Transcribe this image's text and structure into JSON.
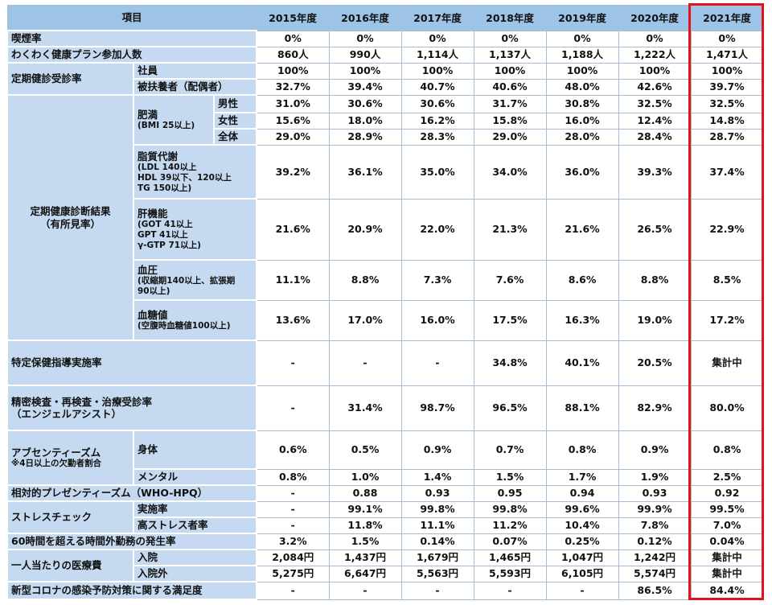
{
  "header": {
    "item": "項目",
    "years": [
      "2015年度",
      "2016年度",
      "2017年度",
      "2018年度",
      "2019年度",
      "2020年度",
      "2021年度"
    ]
  },
  "rows": [
    {
      "label": "喫煙率",
      "values": [
        "0%",
        "0%",
        "0%",
        "0%",
        "0%",
        "0%",
        "0%"
      ]
    },
    {
      "label": "わくわく健康プラン参加人数",
      "values": [
        "860人",
        "990人",
        "1,114人",
        "1,137人",
        "1,188人",
        "1,222人",
        "1,471人"
      ]
    },
    {
      "label": "定期健診受診率",
      "items": [
        {
          "label": "社員",
          "values": [
            "100%",
            "100%",
            "100%",
            "100%",
            "100%",
            "100%",
            "100%"
          ]
        },
        {
          "label": "被扶養者（配偶者）",
          "values": [
            "32.7%",
            "39.4%",
            "40.7%",
            "40.6%",
            "48.0%",
            "42.6%",
            "39.7%"
          ]
        }
      ]
    },
    {
      "label": [
        "定期健康診断結果",
        "（有所見率）"
      ],
      "items": [
        {
          "label": "肥満",
          "note": [
            "(BMI 25以上)"
          ],
          "items": [
            {
              "label": "男性",
              "values": [
                "31.0%",
                "30.6%",
                "30.6%",
                "31.7%",
                "30.8%",
                "32.5%",
                "32.5%"
              ]
            },
            {
              "label": "女性",
              "values": [
                "15.6%",
                "18.0%",
                "16.2%",
                "15.8%",
                "16.0%",
                "12.4%",
                "14.8%"
              ]
            },
            {
              "label": "全体",
              "values": [
                "29.0%",
                "28.9%",
                "28.3%",
                "29.0%",
                "28.0%",
                "28.4%",
                "28.7%"
              ]
            }
          ]
        },
        {
          "label": "脂質代謝",
          "note": [
            "(LDL 140以上",
            "HDL 39以下、120以上",
            "TG 150以上)"
          ],
          "values": [
            "39.2%",
            "36.1%",
            "35.0%",
            "34.0%",
            "36.0%",
            "39.3%",
            "37.4%"
          ]
        },
        {
          "label": "肝機能",
          "note": [
            "(GOT 41以上",
            "GPT 41以上",
            "γ-GTP 71以上)"
          ],
          "values": [
            "21.6%",
            "20.9%",
            "22.0%",
            "21.3%",
            "21.6%",
            "26.5%",
            "22.9%"
          ]
        },
        {
          "label": "血圧",
          "note": [
            "(収縮期140以上、拡張期",
            "90以上)"
          ],
          "values": [
            "11.1%",
            "8.8%",
            "7.3%",
            "7.6%",
            "8.6%",
            "8.8%",
            "8.5%"
          ]
        },
        {
          "label": "血糖値",
          "note": [
            "(空腹時血糖値100以上)"
          ],
          "values": [
            "13.6%",
            "17.0%",
            "16.0%",
            "17.5%",
            "16.3%",
            "19.0%",
            "17.2%"
          ]
        }
      ]
    },
    {
      "label": "特定保健指導実施率",
      "values": [
        "-",
        "-",
        "-",
        "34.8%",
        "40.1%",
        "20.5%",
        "集計中"
      ]
    },
    {
      "label": [
        "精密検査・再検査・治療受診率",
        "（エンジェルアシスト）"
      ],
      "values": [
        "-",
        "31.4%",
        "98.7%",
        "96.5%",
        "88.1%",
        "82.9%",
        "80.0%"
      ]
    },
    {
      "label": "アブセンティーズム",
      "note": [
        "※4日以上の欠勤者割合"
      ],
      "items": [
        {
          "label": "身体",
          "values": [
            "0.6%",
            "0.5%",
            "0.9%",
            "0.7%",
            "0.8%",
            "0.9%",
            "0.8%"
          ]
        },
        {
          "label": "メンタル",
          "values": [
            "0.8%",
            "1.0%",
            "1.4%",
            "1.5%",
            "1.7%",
            "1.9%",
            "2.5%"
          ]
        }
      ]
    },
    {
      "label": "相対的プレゼンティーズム（WHO-HPQ）",
      "values": [
        "-",
        "0.88",
        "0.93",
        "0.95",
        "0.94",
        "0.93",
        "0.92"
      ]
    },
    {
      "label": "ストレスチェック",
      "items": [
        {
          "label": "実施率",
          "values": [
            "-",
            "99.1%",
            "99.8%",
            "99.8%",
            "99.6%",
            "99.9%",
            "99.5%"
          ]
        },
        {
          "label": "高ストレス者率",
          "values": [
            "-",
            "11.8%",
            "11.1%",
            "11.2%",
            "10.4%",
            "7.8%",
            "7.0%"
          ]
        }
      ]
    },
    {
      "label": "60時間を超える時間外勤務の発生率",
      "values": [
        "3.2%",
        "1.5%",
        "0.14%",
        "0.07%",
        "0.25%",
        "0.12%",
        "0.04%"
      ]
    },
    {
      "label": "一人当たりの医療費",
      "items": [
        {
          "label": "入院",
          "values": [
            "2,084円",
            "1,437円",
            "1,679円",
            "1,465円",
            "1,047円",
            "1,242円",
            "集計中"
          ]
        },
        {
          "label": "入院外",
          "values": [
            "5,275円",
            "6,647円",
            "5,563円",
            "5,593円",
            "6,105円",
            "5,574円",
            "集計中"
          ]
        }
      ]
    },
    {
      "label": "新型コロナの感染予防対策に関する満足度",
      "values": [
        "-",
        "-",
        "-",
        "-",
        "-",
        "86.5%",
        "84.4%"
      ]
    }
  ]
}
